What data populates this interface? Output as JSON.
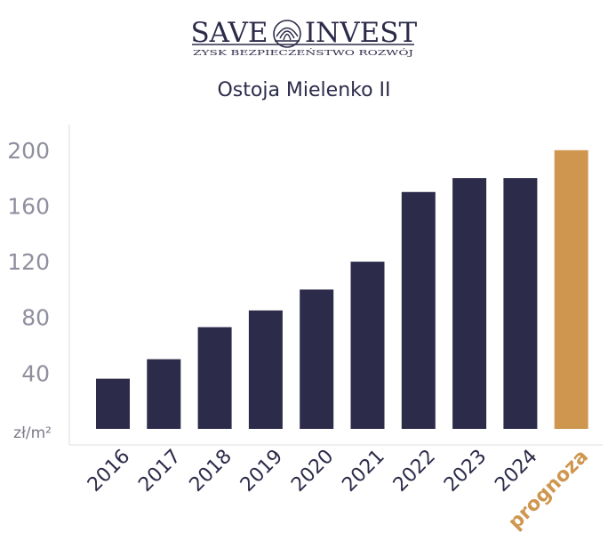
{
  "logo": {
    "word_left": "SAVE",
    "word_right": "INVEST",
    "tagline": "ZYSK BEZPIECZEŃSTWO ROZWÓJ"
  },
  "chart_data": {
    "type": "bar",
    "title": "Ostoja Mielenko II",
    "xlabel": "",
    "ylabel": "zł/m²",
    "categories": [
      "2016",
      "2017",
      "2018",
      "2019",
      "2020",
      "2021",
      "2022",
      "2023",
      "2024",
      "prognoza"
    ],
    "values": [
      36,
      50,
      73,
      85,
      100,
      120,
      170,
      180,
      180,
      200
    ],
    "yticks": [
      40,
      80,
      120,
      160,
      200
    ],
    "ylim": [
      0,
      210
    ],
    "grid": false,
    "legend": "none"
  },
  "colors": {
    "bar": "#2c2b4a",
    "forecast_bar": "#cf9650",
    "text": "#2c2b4a",
    "tick_label": "#8f8f9f",
    "axis": "#dddddd"
  }
}
